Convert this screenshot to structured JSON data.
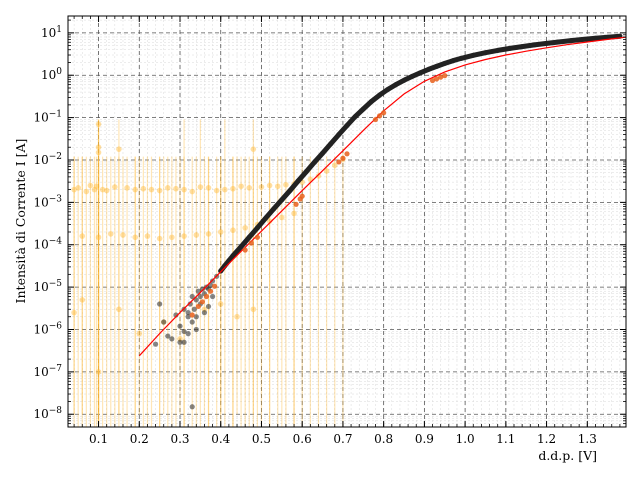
{
  "chart_data": {
    "type": "scatter",
    "xlabel": "d.d.p. [V]",
    "ylabel": "Intensità di Corrente I [A]",
    "x_scale": "linear",
    "y_scale": "log",
    "xlim": [
      0.025,
      1.395
    ],
    "ylim": [
      5e-09,
      25
    ],
    "x_ticks": [
      "0.1",
      "0.2",
      "0.3",
      "0.4",
      "0.5",
      "0.6",
      "0.7",
      "0.8",
      "0.9",
      "1.0",
      "1.1",
      "1.2",
      "1.3"
    ],
    "y_ticks": [
      {
        "base": "10",
        "exp": "1",
        "value": 10
      },
      {
        "base": "10",
        "exp": "0",
        "value": 1
      },
      {
        "base": "10",
        "exp": "−1",
        "value": 0.1
      },
      {
        "base": "10",
        "exp": "−2",
        "value": 0.01
      },
      {
        "base": "10",
        "exp": "−3",
        "value": 0.001
      },
      {
        "base": "10",
        "exp": "−4",
        "value": 0.0001
      },
      {
        "base": "10",
        "exp": "−5",
        "value": 1e-05
      },
      {
        "base": "10",
        "exp": "−6",
        "value": 1e-06
      },
      {
        "base": "10",
        "exp": "−7",
        "value": 1e-07
      },
      {
        "base": "10",
        "exp": "−8",
        "value": 1e-08
      }
    ],
    "grid": true,
    "colors": {
      "measured": "#222222",
      "noisy": "#ffb732",
      "fit": "#ff0000",
      "highlight": "#e8601c"
    },
    "series": [
      {
        "style": "dark-points",
        "x": [
          0.25,
          0.26,
          0.28,
          0.29,
          0.3,
          0.31,
          0.32,
          0.325,
          0.33,
          0.335,
          0.34,
          0.345,
          0.35,
          0.355,
          0.36,
          0.365,
          0.37,
          0.375,
          0.38,
          0.39,
          0.4,
          0.41,
          0.42,
          0.43,
          0.45,
          0.47,
          0.49,
          0.51,
          0.53,
          0.55,
          0.57,
          0.59,
          0.61,
          0.63,
          0.65,
          0.67,
          0.69,
          0.71,
          0.73,
          0.75,
          0.77,
          0.79,
          0.81,
          0.83,
          0.85,
          0.87,
          0.89,
          0.91,
          0.93,
          0.95,
          0.97,
          0.99,
          1.02,
          1.05,
          1.08,
          1.11,
          1.14,
          1.17,
          1.2,
          1.23,
          1.26,
          1.29,
          1.32,
          1.35,
          1.38,
          0.24,
          0.27,
          0.3,
          0.31,
          0.32,
          0.33,
          0.34,
          0.35,
          0.36,
          0.37,
          0.38,
          0.33,
          0.32,
          0.34,
          0.31
        ],
        "y": [
          4e-06,
          1.5e-06,
          6e-07,
          2.2e-06,
          1.2e-06,
          3e-06,
          2e-06,
          4e-06,
          6e-06,
          3e-06,
          5e-06,
          8e-06,
          6e-06,
          9e-06,
          7e-06,
          1e-05,
          9e-06,
          1.1e-05,
          1.4e-05,
          1.8e-05,
          2.4e-05,
          3.2e-05,
          4.2e-05,
          5.5e-05,
          9e-05,
          0.00015,
          0.00025,
          0.00042,
          0.0007,
          0.00115,
          0.0019,
          0.0032,
          0.0053,
          0.0088,
          0.0145,
          0.024,
          0.04,
          0.065,
          0.105,
          0.16,
          0.24,
          0.34,
          0.46,
          0.6,
          0.76,
          0.94,
          1.14,
          1.37,
          1.62,
          1.9,
          2.2,
          2.5,
          2.95,
          3.4,
          3.85,
          4.3,
          4.75,
          5.2,
          5.65,
          6.1,
          6.55,
          7.0,
          7.45,
          7.9,
          8.35,
          4.5e-07,
          7e-07,
          5e-07,
          5e-07,
          2.5e-06,
          1.5e-06,
          1e-06,
          4e-06,
          2.5e-06,
          3.5e-06,
          6e-06,
          1.5e-08,
          8e-07,
          2e-06,
          9e-07
        ]
      },
      {
        "style": "orange-points-with-error-bars",
        "x": [
          0.04,
          0.05,
          0.07,
          0.08,
          0.09,
          0.095,
          0.1,
          0.1,
          0.1,
          0.11,
          0.12,
          0.14,
          0.15,
          0.17,
          0.19,
          0.21,
          0.23,
          0.25,
          0.27,
          0.29,
          0.31,
          0.33,
          0.35,
          0.37,
          0.39,
          0.41,
          0.43,
          0.45,
          0.47,
          0.48,
          0.5,
          0.52,
          0.54,
          0.56,
          0.58,
          0.6,
          0.62,
          0.64,
          0.66,
          0.68,
          0.7,
          0.06,
          0.1,
          0.13,
          0.16,
          0.19,
          0.22,
          0.25,
          0.28,
          0.31,
          0.34,
          0.37,
          0.4,
          0.43,
          0.46,
          0.49,
          0.52,
          0.55,
          0.58,
          0.04,
          0.06,
          0.1,
          0.15,
          0.2,
          0.26,
          0.3,
          0.36,
          0.4,
          0.44,
          0.48
        ],
        "y": [
          0.002,
          0.0022,
          0.0018,
          0.0025,
          0.002,
          0.0024,
          0.07,
          0.02,
          0.015,
          0.002,
          0.0019,
          0.0023,
          0.018,
          0.0022,
          0.002,
          0.0021,
          0.002,
          0.0019,
          0.0022,
          0.0021,
          0.002,
          0.0018,
          0.0023,
          0.0022,
          0.0019,
          0.002,
          0.0021,
          0.0024,
          0.0022,
          0.018,
          0.0023,
          0.0025,
          0.0024,
          0.0026,
          0.0027,
          0.003,
          0.0035,
          0.0042,
          0.0055,
          0.0075,
          0.0105,
          0.00016,
          0.00015,
          0.00018,
          0.00017,
          0.00015,
          0.00016,
          0.00014,
          0.00015,
          0.00016,
          0.00017,
          0.00018,
          0.0002,
          0.00022,
          0.00025,
          0.0003,
          0.00036,
          0.00044,
          0.00055,
          2.5e-06,
          5e-06,
          1e-07,
          3e-06,
          8e-07,
          1.5e-06,
          6e-07,
          3e-06,
          4e-06,
          2e-06,
          3e-06
        ],
        "err_low": [
          1e-09,
          1e-09,
          1e-09,
          1e-09,
          1e-09,
          1e-09,
          6e-09,
          6e-09,
          6e-09,
          1e-09,
          1e-09,
          1e-09,
          1e-09,
          1e-09,
          1e-09,
          1e-09,
          1e-09,
          1e-09,
          1e-09,
          1e-09,
          1e-09,
          1e-09,
          1e-09,
          1e-09,
          1e-09,
          1e-09,
          1e-09,
          1e-09,
          1e-09,
          1e-09,
          1e-09,
          1e-09,
          1e-09,
          1e-09,
          1e-09,
          1e-09,
          1e-09,
          1e-09,
          1e-09,
          1e-09,
          1e-09,
          1e-09,
          1e-09,
          1e-09,
          1e-09,
          1e-09,
          1e-09,
          1e-09,
          1e-09,
          1e-09,
          1e-09,
          1e-09,
          1e-09,
          1e-09,
          1e-09,
          1e-09,
          1e-09,
          1e-09,
          1e-09,
          1e-08,
          1e-08,
          1e-08,
          1e-08,
          1e-08,
          1e-08,
          1e-08,
          1e-08,
          1e-08,
          1e-08,
          1e-08
        ],
        "err_high": [
          0.012,
          0.012,
          0.012,
          0.012,
          0.012,
          0.012,
          0.09,
          0.09,
          0.09,
          0.012,
          0.012,
          0.012,
          0.09,
          0.012,
          0.012,
          0.012,
          0.012,
          0.012,
          0.012,
          0.012,
          0.09,
          0.012,
          0.09,
          0.012,
          0.012,
          0.09,
          0.012,
          0.012,
          0.012,
          0.09,
          0.012,
          0.012,
          0.012,
          0.012,
          0.012,
          0.012,
          0.012,
          0.012,
          0.012,
          0.012,
          0.02,
          0.012,
          0.012,
          0.012,
          0.012,
          0.012,
          0.012,
          0.012,
          0.012,
          0.012,
          0.012,
          0.012,
          0.012,
          0.012,
          0.012,
          0.012,
          0.012,
          0.012,
          0.012,
          0.012,
          0.012,
          0.012,
          0.012,
          0.012,
          0.012,
          0.012,
          0.012,
          0.012,
          0.012,
          0.012
        ]
      },
      {
        "style": "orange-highlight-points",
        "x": [
          0.33,
          0.345,
          0.355,
          0.365,
          0.375,
          0.385,
          0.46,
          0.475,
          0.49,
          0.585,
          0.595,
          0.6,
          0.69,
          0.7,
          0.71,
          0.78,
          0.79,
          0.8,
          0.92,
          0.93,
          0.94,
          0.95
        ],
        "y": [
          2.2e-06,
          3.5e-06,
          4.5e-06,
          6e-06,
          8e-06,
          1.05e-05,
          7.5e-05,
          0.00011,
          0.00015,
          0.0009,
          0.0012,
          0.0014,
          0.009,
          0.011,
          0.014,
          0.09,
          0.11,
          0.13,
          0.75,
          0.82,
          0.9,
          0.98
        ]
      },
      {
        "style": "fit-line",
        "x": [
          0.2,
          0.25,
          0.3,
          0.35,
          0.4,
          0.45,
          0.5,
          0.55,
          0.6,
          0.65,
          0.7,
          0.75,
          0.8,
          0.85,
          0.9,
          0.95,
          1.0,
          1.05,
          1.1,
          1.15,
          1.2,
          1.25,
          1.3,
          1.35,
          1.395
        ],
        "y": [
          2.4e-07,
          8e-07,
          2.5e-06,
          7.5e-06,
          2.3e-05,
          7e-05,
          0.00021,
          0.00063,
          0.0019,
          0.0056,
          0.0165,
          0.05,
          0.145,
          0.36,
          0.72,
          1.2,
          1.75,
          2.35,
          3.0,
          3.7,
          4.45,
          5.25,
          6.1,
          7.0,
          7.9
        ]
      }
    ]
  }
}
